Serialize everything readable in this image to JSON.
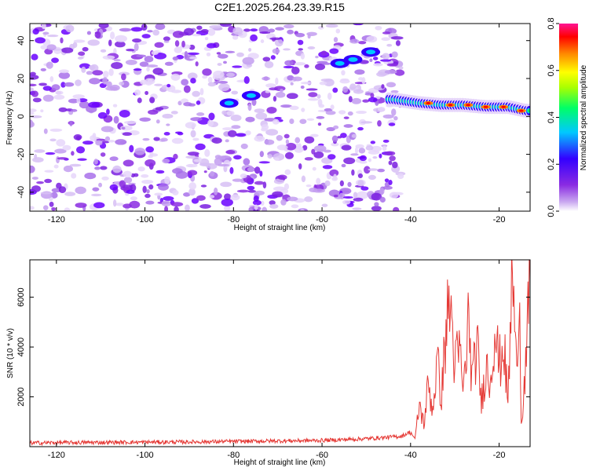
{
  "title": "C2E1.2025.264.23.39.R15",
  "colors": {
    "snr_line": "#e53935",
    "spectrogram_noise": "#8a2be2",
    "colormap": [
      "#ffffff",
      "#c9a8f0",
      "#8a2be2",
      "#3300ff",
      "#00c8ff",
      "#00ff66",
      "#ffff00",
      "#ff8800",
      "#ff0000",
      "#ff1493"
    ]
  },
  "chart_data": [
    {
      "type": "heatmap",
      "id": "spectrogram",
      "title": "C2E1.2025.264.23.39.R15",
      "xlabel": "Height of straight line (km)",
      "ylabel": "Frequency (Hz)",
      "xlim": [
        -126,
        -13
      ],
      "ylim": [
        -50,
        49
      ],
      "xticks": [
        -120,
        -100,
        -80,
        -60,
        -40,
        -20
      ],
      "xtick_labels": [
        "-120",
        "-100",
        "-80",
        "-60",
        "-40",
        "-20"
      ],
      "yticks": [
        -40,
        -20,
        0,
        20,
        40
      ],
      "ytick_labels": [
        "-40",
        "-20",
        "0",
        "20",
        "40"
      ],
      "signal_track": {
        "description_points_km_hz": [
          {
            "x": -81,
            "y": 7
          },
          {
            "x": -76,
            "y": 11
          },
          {
            "x": -56,
            "y": 28
          },
          {
            "x": -53,
            "y": 30
          },
          {
            "x": -49,
            "y": 34
          },
          {
            "x": -44,
            "y": 9
          },
          {
            "x": -38,
            "y": 7
          },
          {
            "x": -33,
            "y": 6
          },
          {
            "x": -28,
            "y": 6
          },
          {
            "x": -23,
            "y": 5
          },
          {
            "x": -18,
            "y": 5
          },
          {
            "x": -14,
            "y": 3
          }
        ]
      },
      "noise_region_xlim": [
        -126,
        -42
      ],
      "colorbar": {
        "label": "Normalized spectral amplitude",
        "range": [
          0.0,
          0.8
        ],
        "ticks": [
          0.0,
          0.2,
          0.4,
          0.6,
          0.8
        ],
        "tick_labels": [
          "0.0",
          "0.2",
          "0.4",
          "0.6",
          "0.8"
        ]
      }
    },
    {
      "type": "line",
      "id": "snr",
      "xlabel": "Height of straight line (km)",
      "ylabel": "SNR (10 * v/v)",
      "xlim": [
        -126,
        -13
      ],
      "ylim": [
        0,
        7500
      ],
      "xticks": [
        -120,
        -100,
        -80,
        -60,
        -40,
        -20
      ],
      "xtick_labels": [
        "-120",
        "-100",
        "-80",
        "-60",
        "-40",
        "-20"
      ],
      "yticks": [
        2000,
        4000,
        6000
      ],
      "ytick_labels": [
        "2000",
        "4000",
        "6000"
      ],
      "series": [
        {
          "name": "SNR",
          "x": [
            -126,
            -120,
            -110,
            -100,
            -90,
            -80,
            -70,
            -60,
            -50,
            -45,
            -42,
            -40,
            -39,
            -38,
            -37,
            -36,
            -35,
            -34,
            -33,
            -32,
            -31,
            -30,
            -29,
            -28,
            -27,
            -26,
            -25,
            -24,
            -23,
            -22,
            -21,
            -20,
            -19,
            -18,
            -17,
            -16,
            -15.5,
            -15,
            -14,
            -13
          ],
          "y": [
            150,
            160,
            170,
            180,
            190,
            210,
            230,
            250,
            320,
            380,
            420,
            600,
            300,
            1700,
            900,
            2500,
            1500,
            3400,
            2000,
            4800,
            5800,
            3200,
            3900,
            2200,
            5000,
            2600,
            4200,
            1700,
            3300,
            2600,
            4900,
            3200,
            4200,
            1700,
            7200,
            2600,
            7500,
            1000,
            3200,
            6700
          ]
        }
      ]
    }
  ]
}
